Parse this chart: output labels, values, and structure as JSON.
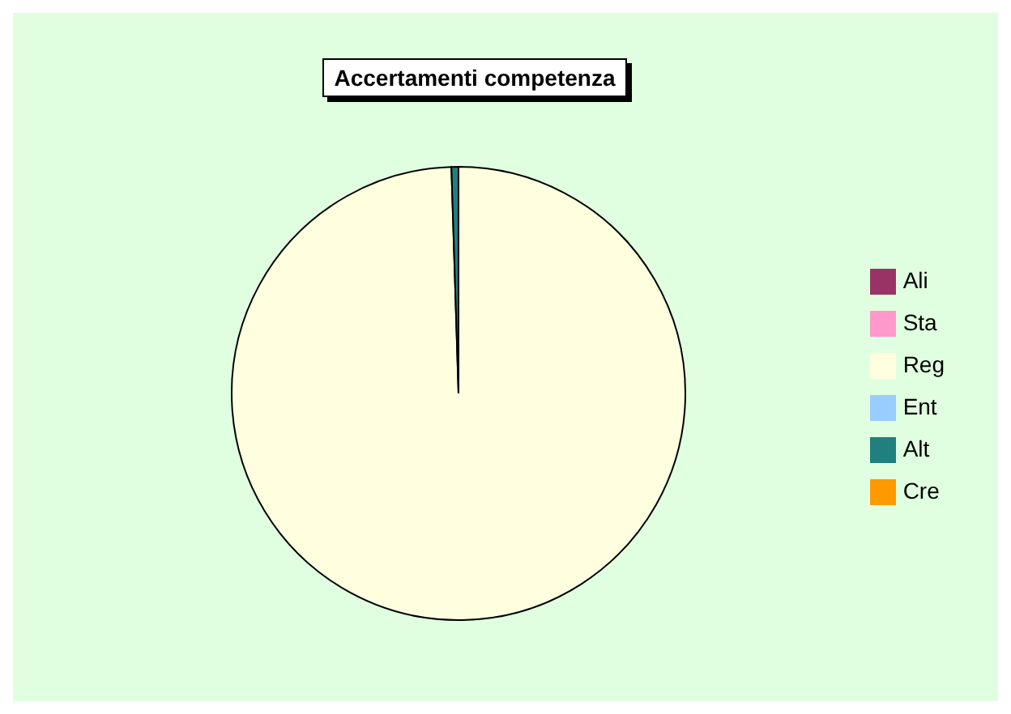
{
  "chart_data": {
    "type": "pie",
    "title": "Accertamenti competenza",
    "categories": [
      "Ali",
      "Sta",
      "Reg",
      "Ent",
      "Alt",
      "Cre"
    ],
    "values": [
      0,
      0,
      99.5,
      0,
      0.5,
      0
    ],
    "colors": [
      "#993366",
      "#ff99cc",
      "#ffffe0",
      "#99ccff",
      "#208080",
      "#ff9900"
    ],
    "legend": "right"
  }
}
